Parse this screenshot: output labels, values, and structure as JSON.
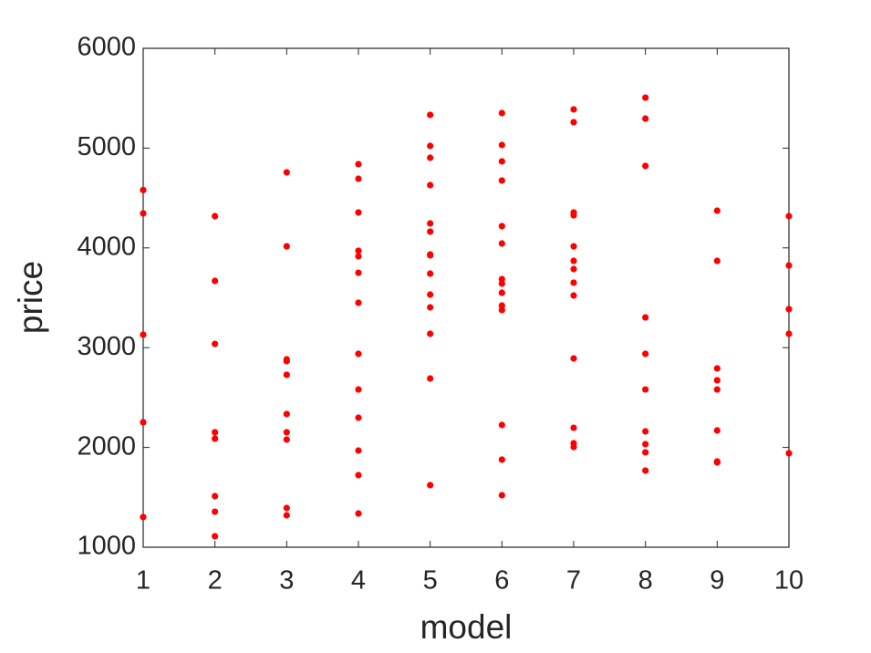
{
  "chart_data": {
    "type": "scatter",
    "xlabel": "model",
    "ylabel": "price",
    "color": "#ff0000",
    "grid": false,
    "x": [
      1,
      1,
      1,
      1,
      1,
      2,
      2,
      2,
      2,
      2,
      2,
      2,
      2,
      3,
      3,
      3,
      3,
      3,
      3,
      3,
      3,
      3,
      3,
      4,
      4,
      4,
      4,
      4,
      4,
      4,
      4,
      4,
      4,
      4,
      4,
      4,
      5,
      5,
      5,
      5,
      5,
      5,
      5,
      5,
      5,
      5,
      5,
      5,
      5,
      5,
      6,
      6,
      6,
      6,
      6,
      6,
      6,
      6,
      6,
      6,
      6,
      6,
      6,
      6,
      7,
      7,
      7,
      7,
      7,
      7,
      7,
      7,
      7,
      7,
      7,
      7,
      7,
      8,
      8,
      8,
      8,
      8,
      8,
      8,
      8,
      8,
      8,
      9,
      9,
      9,
      9,
      9,
      9,
      9,
      9,
      10,
      10,
      10,
      10,
      10
    ],
    "y": [
      4580,
      4346,
      3130,
      2252,
      1302,
      4318,
      3669,
      3038,
      2152,
      2088,
      1512,
      1356,
      1110,
      4757,
      4016,
      2883,
      2865,
      2728,
      2335,
      2152,
      2079,
      1393,
      1320,
      4839,
      4693,
      4355,
      3971,
      3916,
      3751,
      3450,
      2938,
      2581,
      2298,
      1969,
      1722,
      1338,
      5333,
      5022,
      4903,
      4629,
      4245,
      4163,
      3934,
      3925,
      3742,
      3532,
      3404,
      3139,
      2691,
      1622,
      5351,
      5031,
      4867,
      4675,
      4218,
      4044,
      3687,
      3642,
      3550,
      3422,
      3377,
      2225,
      1878,
      1521,
      5388,
      5260,
      4355,
      4327,
      4016,
      3870,
      3788,
      3651,
      3523,
      2892,
      2197,
      2042,
      2005,
      5506,
      5296,
      4821,
      3303,
      2938,
      2581,
      2161,
      2033,
      1951,
      1768,
      4373,
      3870,
      2792,
      2673,
      2581,
      2170,
      1859,
      1850,
      4318,
      3824,
      3386,
      3139,
      1942
    ],
    "xlim": [
      1,
      10
    ],
    "ylim": [
      1000,
      6000
    ],
    "xticks": [
      1,
      2,
      3,
      4,
      5,
      6,
      7,
      8,
      9,
      10
    ],
    "yticks": [
      1000,
      2000,
      3000,
      4000,
      5000,
      6000
    ]
  }
}
